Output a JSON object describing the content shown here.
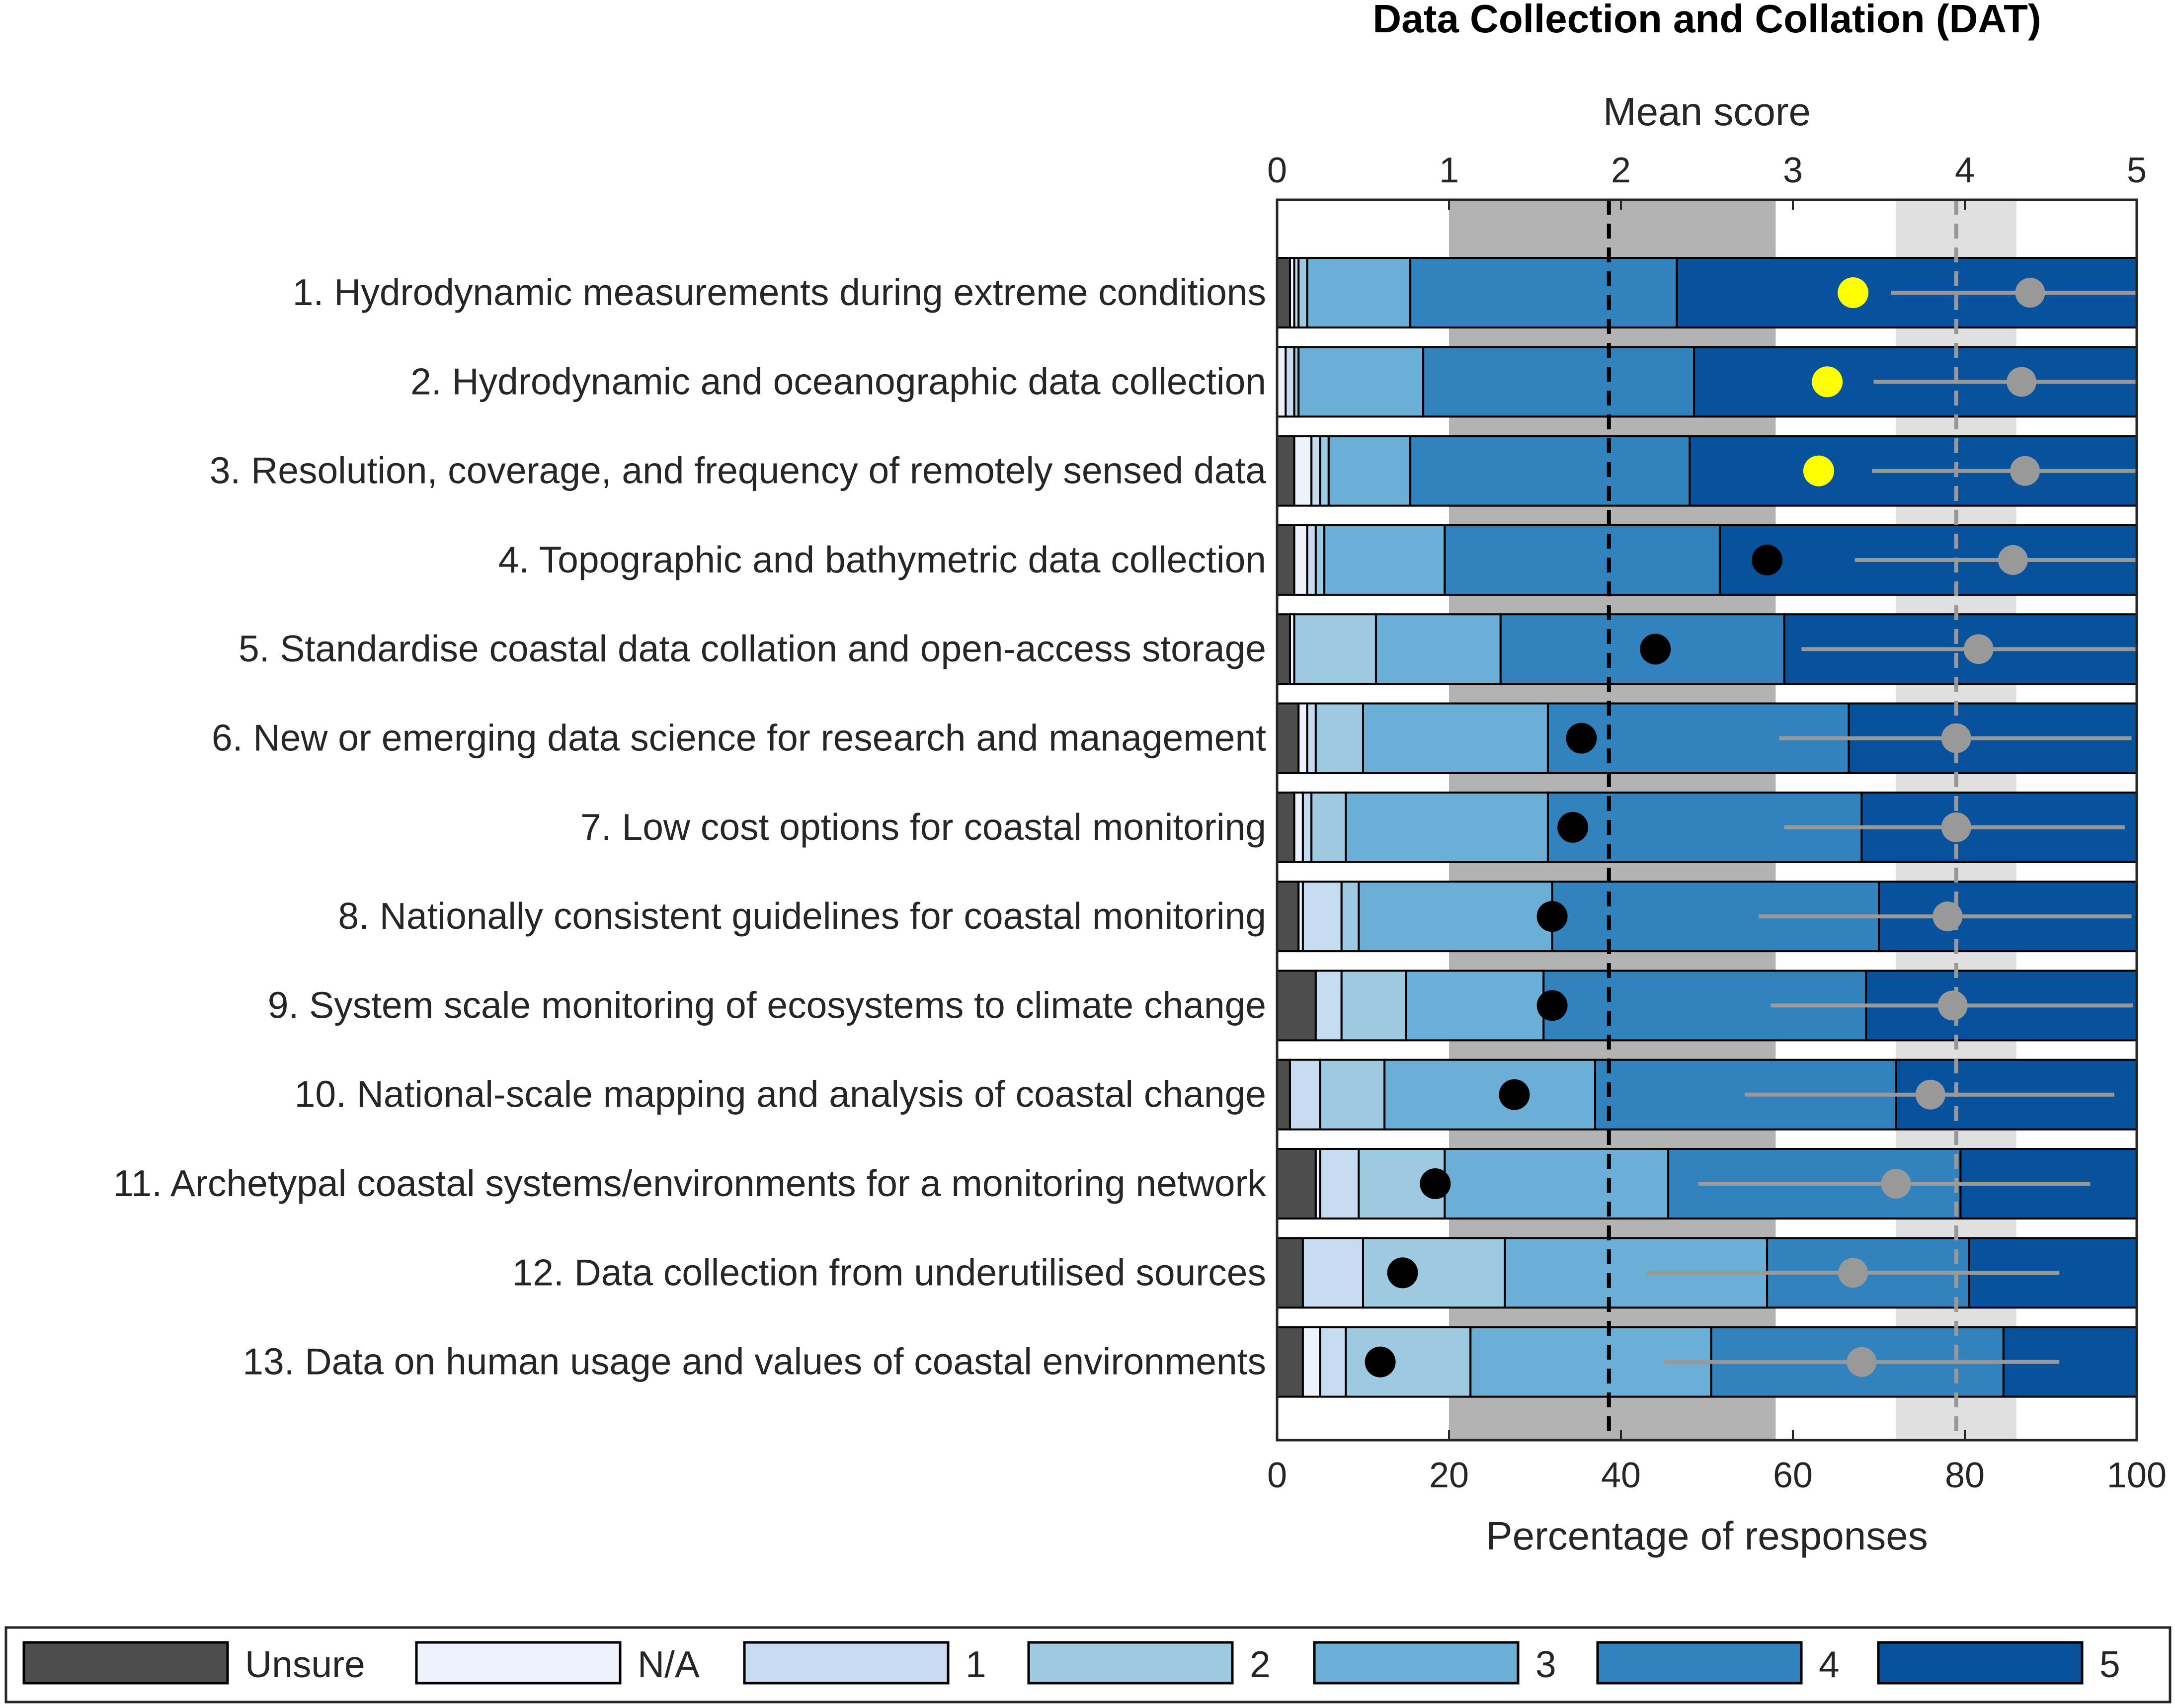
{
  "chart_data": {
    "type": "stacked-bar",
    "title": "Data Collection and Collation (DAT)",
    "top_axis": {
      "label": "Mean score",
      "range": [
        0,
        5
      ],
      "ticks": [
        "0",
        "1",
        "2",
        "3",
        "4",
        "5"
      ]
    },
    "bottom_axis": {
      "label": "Percentage of responses",
      "range": [
        0,
        100
      ],
      "ticks": [
        "0",
        "20",
        "40",
        "60",
        "80",
        "100"
      ]
    },
    "series_names": [
      "Unsure",
      "N/A",
      "1",
      "2",
      "3",
      "4",
      "5"
    ],
    "colors": {
      "Unsure": "#4d4d4d",
      "N/A": "#eef3fb",
      "1": "#c6dbef",
      "2": "#9ecae1",
      "3": "#6baed6",
      "4": "#3182bd",
      "5": "#08519c",
      "dark_band": "#b3b3b3",
      "light_band": "#e0e0e0",
      "mean_marker": "#000000",
      "highlight_marker": "#ffff00",
      "gray_marker": "#999999",
      "bar_edge": "#000000"
    },
    "reference": {
      "dark_band_score": [
        1.0,
        2.9
      ],
      "dark_band_center_score": 1.93,
      "light_band_score": [
        3.6,
        4.3
      ],
      "light_band_center_score": 3.95
    },
    "categories": [
      "1. Hydrodynamic measurements during extreme conditions",
      "2. Hydrodynamic and oceanographic data collection",
      "3. Resolution, coverage, and frequency of remotely sensed data",
      "4. Topographic and bathymetric data collection",
      "5. Standardise coastal data collation and open-access storage",
      "6. New or emerging data science for research and management",
      "7. Low cost options for coastal monitoring",
      "8. Nationally consistent guidelines for coastal monitoring",
      "9. System scale monitoring of ecosystems to climate change",
      "10. National-scale mapping and analysis of coastal change",
      "11. Archetypal coastal systems/environments for a monitoring network",
      "12. Data collection from underutilised sources",
      "13. Data on human usage and values of coastal environments"
    ],
    "percentages": [
      [
        1.5,
        0.5,
        0.5,
        1.0,
        12.0,
        31.0,
        53.5
      ],
      [
        0.0,
        1.0,
        1.0,
        0.5,
        14.5,
        31.5,
        51.5
      ],
      [
        2.0,
        2.0,
        1.0,
        1.0,
        9.5,
        32.5,
        52.0
      ],
      [
        2.0,
        1.5,
        1.0,
        1.0,
        14.0,
        32.0,
        48.5
      ],
      [
        1.5,
        0.5,
        0.0,
        9.5,
        14.5,
        33.0,
        41.0
      ],
      [
        2.5,
        1.0,
        1.0,
        5.5,
        21.5,
        35.0,
        33.5
      ],
      [
        2.0,
        1.0,
        1.0,
        4.0,
        23.5,
        36.5,
        32.0
      ],
      [
        2.5,
        0.5,
        4.5,
        2.0,
        22.5,
        38.0,
        30.0
      ],
      [
        4.5,
        0.0,
        3.0,
        7.5,
        16.0,
        37.5,
        31.5
      ],
      [
        1.5,
        0.0,
        3.5,
        7.5,
        24.5,
        35.0,
        28.0
      ],
      [
        4.5,
        0.5,
        4.5,
        10.0,
        26.0,
        34.0,
        20.5
      ],
      [
        3.0,
        0.0,
        7.0,
        16.5,
        30.5,
        23.5,
        19.5
      ],
      [
        3.0,
        2.0,
        3.0,
        14.5,
        28.0,
        34.0,
        15.5
      ]
    ],
    "mean_scores": [
      3.35,
      3.2,
      3.15,
      2.85,
      2.2,
      1.77,
      1.72,
      1.6,
      1.6,
      1.38,
      0.92,
      0.73,
      0.6
    ],
    "mean_highlighted": [
      true,
      true,
      true,
      false,
      false,
      false,
      false,
      false,
      false,
      false,
      false,
      false,
      false
    ],
    "gray_markers": [
      {
        "mean": 4.38,
        "low": 3.57,
        "high": 5.0
      },
      {
        "mean": 4.33,
        "low": 3.47,
        "high": 5.0
      },
      {
        "mean": 4.35,
        "low": 3.46,
        "high": 5.0
      },
      {
        "mean": 4.28,
        "low": 3.36,
        "high": 5.0
      },
      {
        "mean": 4.08,
        "low": 3.05,
        "high": 5.0
      },
      {
        "mean": 3.95,
        "low": 2.92,
        "high": 4.97
      },
      {
        "mean": 3.95,
        "low": 2.95,
        "high": 4.93
      },
      {
        "mean": 3.9,
        "low": 2.8,
        "high": 4.97
      },
      {
        "mean": 3.93,
        "low": 2.87,
        "high": 4.98
      },
      {
        "mean": 3.8,
        "low": 2.72,
        "high": 4.87
      },
      {
        "mean": 3.6,
        "low": 2.45,
        "high": 4.73
      },
      {
        "mean": 3.35,
        "low": 2.15,
        "high": 4.55
      },
      {
        "mean": 3.4,
        "low": 2.25,
        "high": 4.55
      }
    ],
    "legend": [
      "Unsure",
      "N/A",
      "1",
      "2",
      "3",
      "4",
      "5"
    ]
  }
}
